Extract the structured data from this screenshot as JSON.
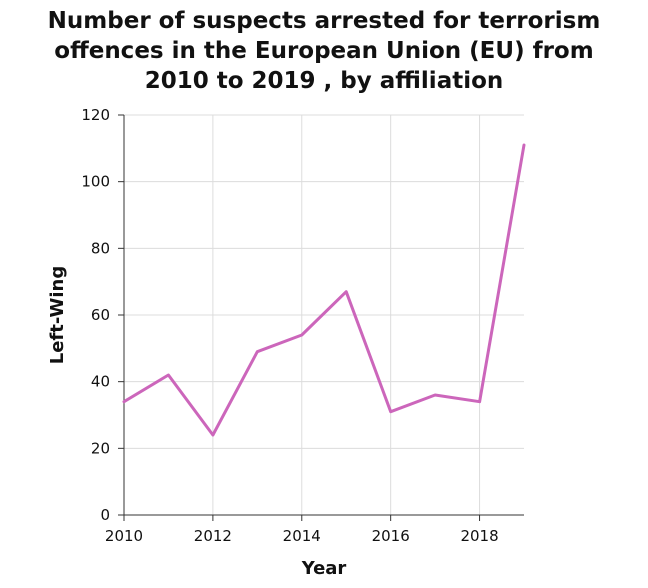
{
  "chart_data": {
    "type": "line",
    "title_lines": [
      "Number of suspects arrested for terrorism",
      "offences in the European Union (EU) from",
      "2010 to 2019 , by affiliation"
    ],
    "xlabel": "Year",
    "ylabel": "Left-Wing",
    "x": [
      2010,
      2011,
      2012,
      2013,
      2014,
      2015,
      2016,
      2017,
      2018,
      2019
    ],
    "series": [
      {
        "values": [
          34,
          42,
          24,
          49,
          54,
          67,
          31,
          36,
          34,
          111
        ]
      }
    ],
    "xlim": [
      2010,
      2019
    ],
    "ylim": [
      0,
      120
    ],
    "xticks": [
      2010,
      2012,
      2014,
      2016,
      2018
    ],
    "yticks": [
      0,
      20,
      40,
      60,
      80,
      100,
      120
    ],
    "grid": true,
    "line_color": "#cc66bb"
  }
}
